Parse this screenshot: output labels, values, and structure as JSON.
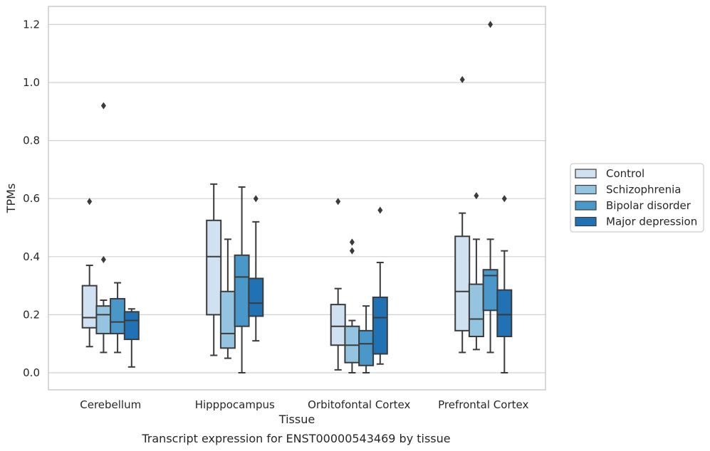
{
  "chart_data": {
    "type": "box",
    "title": "",
    "caption": "Transcript expression for ENST00000543469 by tissue",
    "xlabel": "Tissue",
    "ylabel": "TPMs",
    "ylim": [
      -0.06,
      1.26
    ],
    "yticks": [
      "0.0",
      "0.2",
      "0.4",
      "0.6",
      "0.8",
      "1.0",
      "1.2"
    ],
    "categories": [
      "Cerebellum",
      "Hipppocampus",
      "Orbitofontal Cortex",
      "Prefrontal Cortex"
    ],
    "grid": true,
    "legend_position": "right",
    "series": [
      {
        "name": "Control",
        "color": "#d0e1f2",
        "boxes": [
          {
            "whisker_low": 0.09,
            "q1": 0.155,
            "median": 0.19,
            "q3": 0.3,
            "whisker_high": 0.37,
            "outliers": [
              0.59
            ]
          },
          {
            "whisker_low": 0.06,
            "q1": 0.2,
            "median": 0.4,
            "q3": 0.525,
            "whisker_high": 0.65,
            "outliers": []
          },
          {
            "whisker_low": 0.01,
            "q1": 0.095,
            "median": 0.16,
            "q3": 0.235,
            "whisker_high": 0.29,
            "outliers": [
              0.59
            ]
          },
          {
            "whisker_low": 0.07,
            "q1": 0.145,
            "median": 0.28,
            "q3": 0.47,
            "whisker_high": 0.55,
            "outliers": [
              1.01
            ]
          }
        ]
      },
      {
        "name": "Schizophrenia",
        "color": "#94c4df",
        "boxes": [
          {
            "whisker_low": 0.07,
            "q1": 0.135,
            "median": 0.2,
            "q3": 0.23,
            "whisker_high": 0.25,
            "outliers": [
              0.39,
              0.92
            ]
          },
          {
            "whisker_low": 0.05,
            "q1": 0.085,
            "median": 0.135,
            "q3": 0.28,
            "whisker_high": 0.46,
            "outliers": []
          },
          {
            "whisker_low": 0.0,
            "q1": 0.035,
            "median": 0.095,
            "q3": 0.16,
            "whisker_high": 0.18,
            "outliers": [
              0.42,
              0.45
            ]
          },
          {
            "whisker_low": 0.08,
            "q1": 0.125,
            "median": 0.185,
            "q3": 0.305,
            "whisker_high": 0.46,
            "outliers": [
              0.61
            ]
          }
        ]
      },
      {
        "name": "Bipolar disorder",
        "color": "#4a98c9",
        "boxes": [
          {
            "whisker_low": 0.07,
            "q1": 0.135,
            "median": 0.175,
            "q3": 0.255,
            "whisker_high": 0.31,
            "outliers": []
          },
          {
            "whisker_low": 0.0,
            "q1": 0.16,
            "median": 0.33,
            "q3": 0.405,
            "whisker_high": 0.64,
            "outliers": []
          },
          {
            "whisker_low": 0.0,
            "q1": 0.025,
            "median": 0.1,
            "q3": 0.145,
            "whisker_high": 0.23,
            "outliers": []
          },
          {
            "whisker_low": 0.07,
            "q1": 0.215,
            "median": 0.335,
            "q3": 0.355,
            "whisker_high": 0.46,
            "outliers": [
              1.2
            ]
          }
        ]
      },
      {
        "name": "Major depression",
        "color": "#2171b5",
        "boxes": [
          {
            "whisker_low": 0.02,
            "q1": 0.115,
            "median": 0.18,
            "q3": 0.21,
            "whisker_high": 0.22,
            "outliers": []
          },
          {
            "whisker_low": 0.11,
            "q1": 0.195,
            "median": 0.24,
            "q3": 0.325,
            "whisker_high": 0.52,
            "outliers": [
              0.6
            ]
          },
          {
            "whisker_low": 0.03,
            "q1": 0.065,
            "median": 0.19,
            "q3": 0.26,
            "whisker_high": 0.38,
            "outliers": [
              0.56
            ]
          },
          {
            "whisker_low": 0.0,
            "q1": 0.125,
            "median": 0.2,
            "q3": 0.285,
            "whisker_high": 0.42,
            "outliers": [
              0.6
            ]
          }
        ]
      }
    ]
  }
}
